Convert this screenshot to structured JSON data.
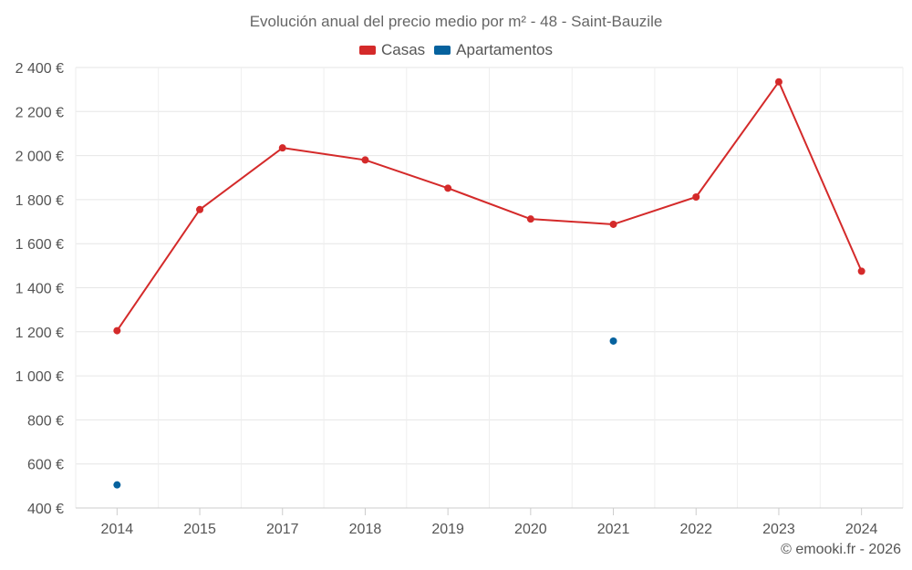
{
  "credit": "© emooki.fr - 2026",
  "chart_data": {
    "type": "line",
    "title": "Evolución anual del precio medio por m² - 48 - Saint-Bauzile",
    "xlabel": "",
    "ylabel": "",
    "categories": [
      "2014",
      "2015",
      "2017",
      "2018",
      "2019",
      "2020",
      "2021",
      "2022",
      "2023",
      "2024"
    ],
    "ylim": [
      400,
      2400
    ],
    "yticks": [
      400,
      600,
      800,
      1000,
      1200,
      1400,
      1600,
      1800,
      2000,
      2200,
      2400
    ],
    "ytick_labels": [
      "400 €",
      "600 €",
      "800 €",
      "1 000 €",
      "1 200 €",
      "1 400 €",
      "1 600 €",
      "1 800 €",
      "2 000 €",
      "2 200 €",
      "2 400 €"
    ],
    "grid": true,
    "legend_position": "top-center",
    "series": [
      {
        "name": "Casas",
        "color": "#d42a2a",
        "line": true,
        "values": [
          1205,
          1755,
          2035,
          1980,
          1852,
          1712,
          1688,
          1812,
          2335,
          1475
        ]
      },
      {
        "name": "Apartamentos",
        "color": "#06629e",
        "line": false,
        "values": [
          505,
          null,
          null,
          null,
          null,
          null,
          1158,
          null,
          null,
          null
        ]
      }
    ]
  }
}
